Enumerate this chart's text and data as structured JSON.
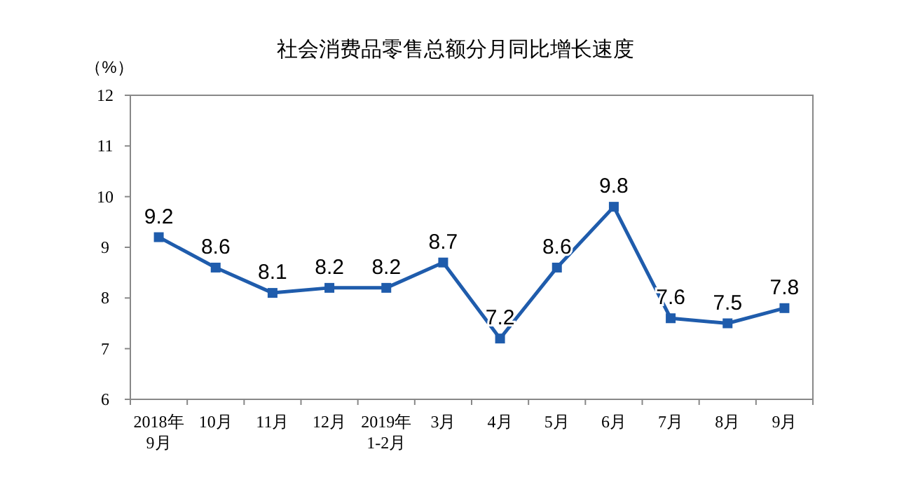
{
  "chart_data": {
    "type": "line",
    "title": "社会消费品零售总额分月同比增长速度",
    "ylabel": "（%）",
    "categories": [
      "2018年\n9月",
      "10月",
      "11月",
      "12月",
      "2019年\n1-2月",
      "3月",
      "4月",
      "5月",
      "6月",
      "7月",
      "8月",
      "9月"
    ],
    "series": [
      {
        "color": "#1f5cac",
        "values": [
          9.2,
          8.6,
          8.1,
          8.2,
          8.2,
          8.7,
          7.2,
          8.6,
          9.8,
          7.6,
          7.5,
          7.8
        ]
      }
    ],
    "ylim": [
      6,
      12
    ],
    "yticks": [
      6,
      7,
      8,
      9,
      10,
      11,
      12
    ],
    "grid": false,
    "marker": "square",
    "line_style": "solid",
    "data_labels": true
  }
}
